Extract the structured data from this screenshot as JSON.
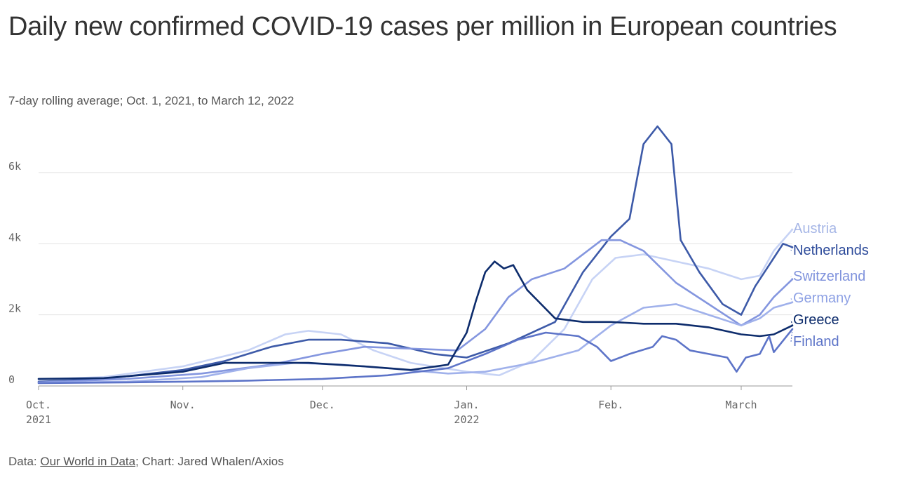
{
  "title": "Daily new confirmed COVID-19 cases per million in European countries",
  "subtitle": "7-day rolling average; Oct. 1, 2021, to March 12, 2022",
  "footer": {
    "prefix": "Data: ",
    "source_link": "Our World in Data",
    "suffix": "; Chart: Jared Whalen/Axios"
  },
  "chart_data": {
    "type": "line",
    "x_unit": "date",
    "x_range": [
      "2021-10-01",
      "2022-03-12"
    ],
    "ylim": [
      0,
      7300
    ],
    "y_ticks": [
      {
        "value": 0,
        "label": "0"
      },
      {
        "value": 2000,
        "label": "2k"
      },
      {
        "value": 4000,
        "label": "4k"
      },
      {
        "value": 6000,
        "label": "6k"
      }
    ],
    "x_ticks": [
      {
        "date": "2021-10-01",
        "label": "Oct.",
        "year": "2021"
      },
      {
        "date": "2021-11-01",
        "label": "Nov.",
        "year": ""
      },
      {
        "date": "2021-12-01",
        "label": "Dec.",
        "year": ""
      },
      {
        "date": "2022-01-01",
        "label": "Jan.",
        "year": "2022"
      },
      {
        "date": "2022-02-01",
        "label": "Feb.",
        "year": ""
      },
      {
        "date": "2022-03-01",
        "label": "March",
        "year": ""
      }
    ],
    "grid": true,
    "legend": "direct labels at right end of lines",
    "series": [
      {
        "name": "Austria",
        "color": "#c7d3f5",
        "label_color": "#a6b6e6",
        "points": [
          [
            "2021-10-01",
            180
          ],
          [
            "2021-10-15",
            250
          ],
          [
            "2021-11-01",
            550
          ],
          [
            "2021-11-15",
            1000
          ],
          [
            "2021-11-23",
            1450
          ],
          [
            "2021-11-28",
            1550
          ],
          [
            "2021-12-05",
            1450
          ],
          [
            "2021-12-12",
            1000
          ],
          [
            "2021-12-20",
            650
          ],
          [
            "2022-01-01",
            400
          ],
          [
            "2022-01-08",
            300
          ],
          [
            "2022-01-15",
            700
          ],
          [
            "2022-01-22",
            1600
          ],
          [
            "2022-01-28",
            3000
          ],
          [
            "2022-02-02",
            3600
          ],
          [
            "2022-02-08",
            3700
          ],
          [
            "2022-02-15",
            3500
          ],
          [
            "2022-02-22",
            3300
          ],
          [
            "2022-03-01",
            3000
          ],
          [
            "2022-03-05",
            3100
          ],
          [
            "2022-03-08",
            3800
          ],
          [
            "2022-03-12",
            4400
          ]
        ]
      },
      {
        "name": "Netherlands",
        "color": "#3d5aa8",
        "label_color": "#2c4a9a",
        "points": [
          [
            "2021-10-01",
            120
          ],
          [
            "2021-10-15",
            200
          ],
          [
            "2021-11-01",
            450
          ],
          [
            "2021-11-10",
            700
          ],
          [
            "2021-11-20",
            1100
          ],
          [
            "2021-11-28",
            1300
          ],
          [
            "2021-12-05",
            1300
          ],
          [
            "2021-12-15",
            1200
          ],
          [
            "2021-12-25",
            900
          ],
          [
            "2022-01-01",
            800
          ],
          [
            "2022-01-10",
            1200
          ],
          [
            "2022-01-20",
            1800
          ],
          [
            "2022-01-26",
            3200
          ],
          [
            "2022-02-01",
            4200
          ],
          [
            "2022-02-05",
            4700
          ],
          [
            "2022-02-08",
            6800
          ],
          [
            "2022-02-11",
            7300
          ],
          [
            "2022-02-14",
            6800
          ],
          [
            "2022-02-16",
            4100
          ],
          [
            "2022-02-20",
            3200
          ],
          [
            "2022-02-25",
            2300
          ],
          [
            "2022-03-01",
            2000
          ],
          [
            "2022-03-04",
            2800
          ],
          [
            "2022-03-08",
            3600
          ],
          [
            "2022-03-10",
            4000
          ],
          [
            "2022-03-12",
            3900
          ]
        ]
      },
      {
        "name": "Switzerland",
        "color": "#8496df",
        "label_color": "#7f92dc",
        "points": [
          [
            "2021-10-01",
            100
          ],
          [
            "2021-10-20",
            200
          ],
          [
            "2021-11-05",
            350
          ],
          [
            "2021-11-20",
            600
          ],
          [
            "2021-12-01",
            900
          ],
          [
            "2021-12-10",
            1100
          ],
          [
            "2021-12-20",
            1050
          ],
          [
            "2021-12-30",
            1000
          ],
          [
            "2022-01-05",
            1600
          ],
          [
            "2022-01-10",
            2500
          ],
          [
            "2022-01-15",
            3000
          ],
          [
            "2022-01-22",
            3300
          ],
          [
            "2022-01-30",
            4100
          ],
          [
            "2022-02-03",
            4100
          ],
          [
            "2022-02-08",
            3800
          ],
          [
            "2022-02-15",
            2900
          ],
          [
            "2022-02-22",
            2300
          ],
          [
            "2022-03-01",
            1700
          ],
          [
            "2022-03-05",
            2000
          ],
          [
            "2022-03-08",
            2500
          ],
          [
            "2022-03-12",
            3000
          ]
        ]
      },
      {
        "name": "Germany",
        "color": "#a0b1eb",
        "label_color": "#8ea1e4",
        "points": [
          [
            "2021-10-01",
            90
          ],
          [
            "2021-10-20",
            120
          ],
          [
            "2021-11-05",
            250
          ],
          [
            "2021-11-15",
            500
          ],
          [
            "2021-11-25",
            650
          ],
          [
            "2021-12-05",
            600
          ],
          [
            "2021-12-15",
            500
          ],
          [
            "2021-12-28",
            350
          ],
          [
            "2022-01-05",
            400
          ],
          [
            "2022-01-15",
            650
          ],
          [
            "2022-01-25",
            1000
          ],
          [
            "2022-02-01",
            1700
          ],
          [
            "2022-02-08",
            2200
          ],
          [
            "2022-02-15",
            2300
          ],
          [
            "2022-02-22",
            2000
          ],
          [
            "2022-03-01",
            1700
          ],
          [
            "2022-03-05",
            1900
          ],
          [
            "2022-03-08",
            2200
          ],
          [
            "2022-03-12",
            2350
          ]
        ]
      },
      {
        "name": "Greece",
        "color": "#0d2c6c",
        "label_color": "#0d2c6c",
        "points": [
          [
            "2021-10-01",
            200
          ],
          [
            "2021-10-15",
            220
          ],
          [
            "2021-11-01",
            400
          ],
          [
            "2021-11-10",
            650
          ],
          [
            "2021-11-20",
            650
          ],
          [
            "2021-11-28",
            650
          ],
          [
            "2021-12-10",
            550
          ],
          [
            "2021-12-20",
            450
          ],
          [
            "2021-12-28",
            600
          ],
          [
            "2022-01-01",
            1500
          ],
          [
            "2022-01-03",
            2400
          ],
          [
            "2022-01-05",
            3200
          ],
          [
            "2022-01-07",
            3500
          ],
          [
            "2022-01-09",
            3300
          ],
          [
            "2022-01-11",
            3400
          ],
          [
            "2022-01-14",
            2700
          ],
          [
            "2022-01-20",
            1900
          ],
          [
            "2022-01-26",
            1800
          ],
          [
            "2022-02-01",
            1800
          ],
          [
            "2022-02-08",
            1750
          ],
          [
            "2022-02-15",
            1750
          ],
          [
            "2022-02-22",
            1650
          ],
          [
            "2022-03-01",
            1450
          ],
          [
            "2022-03-05",
            1400
          ],
          [
            "2022-03-08",
            1450
          ],
          [
            "2022-03-12",
            1700
          ]
        ]
      },
      {
        "name": "Finland",
        "color": "#5d74c8",
        "label_color": "#5d74c8",
        "points": [
          [
            "2021-10-01",
            80
          ],
          [
            "2021-10-20",
            100
          ],
          [
            "2021-11-01",
            120
          ],
          [
            "2021-11-15",
            150
          ],
          [
            "2021-12-01",
            200
          ],
          [
            "2021-12-15",
            300
          ],
          [
            "2021-12-28",
            500
          ],
          [
            "2022-01-05",
            900
          ],
          [
            "2022-01-12",
            1300
          ],
          [
            "2022-01-18",
            1500
          ],
          [
            "2022-01-25",
            1400
          ],
          [
            "2022-01-29",
            1100
          ],
          [
            "2022-02-01",
            700
          ],
          [
            "2022-02-05",
            900
          ],
          [
            "2022-02-10",
            1100
          ],
          [
            "2022-02-12",
            1400
          ],
          [
            "2022-02-15",
            1300
          ],
          [
            "2022-02-18",
            1000
          ],
          [
            "2022-02-22",
            900
          ],
          [
            "2022-02-26",
            800
          ],
          [
            "2022-02-28",
            400
          ],
          [
            "2022-03-02",
            800
          ],
          [
            "2022-03-05",
            900
          ],
          [
            "2022-03-07",
            1400
          ],
          [
            "2022-03-08",
            950
          ],
          [
            "2022-03-12",
            1600
          ]
        ]
      }
    ]
  }
}
